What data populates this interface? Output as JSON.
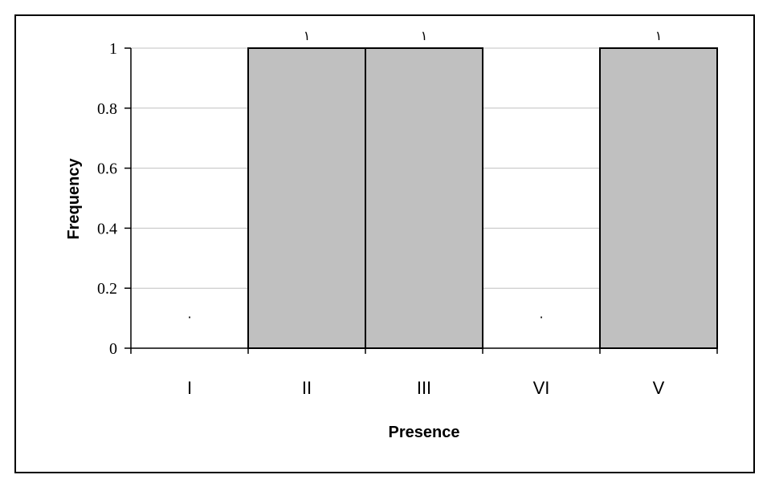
{
  "chart_data": {
    "type": "bar",
    "xlabel": "Presence",
    "ylabel": "Frequency",
    "categories": [
      "I",
      "II",
      "III",
      "VI",
      "V"
    ],
    "values": [
      0,
      1,
      1,
      0,
      1
    ],
    "data_labels": [
      "٠",
      "١",
      "١",
      "٠",
      "١"
    ],
    "ylim": [
      0,
      1
    ],
    "yticks": [
      "0",
      "0.2",
      "0.4",
      "0.6",
      "0.8",
      "1"
    ],
    "grid": true,
    "legend": "none",
    "bar_color": "#c0c0c0",
    "bar_edge_color": "#000000"
  }
}
